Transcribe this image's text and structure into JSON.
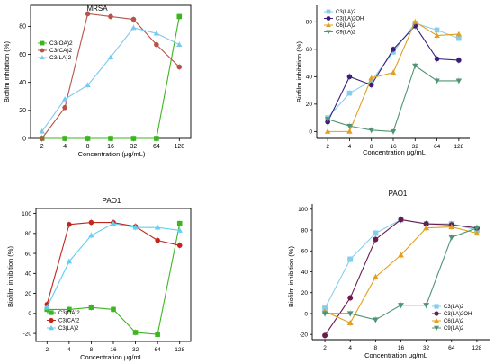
{
  "chart_data": [
    {
      "type": "line",
      "title": "MRSA",
      "xlabel": "Concentration (μg/mL)",
      "ylabel": "Biofilm inhibition (%)",
      "x": [
        "2",
        "4",
        "8",
        "16",
        "32",
        "64",
        "128"
      ],
      "yticks": [
        0,
        20,
        40,
        60,
        80
      ],
      "ylim": [
        0,
        95
      ],
      "legend": "top-left",
      "series": [
        {
          "name": "C3(OA)2",
          "color": "#3cb521",
          "marker": "square",
          "values": [
            0,
            0,
            0,
            0,
            0,
            0,
            87
          ]
        },
        {
          "name": "C3(CA)2",
          "color": "#b5544a",
          "marker": "circle",
          "values": [
            0,
            22,
            89,
            87,
            85,
            67,
            51
          ]
        },
        {
          "name": "C3(LA)2",
          "color": "#7ec8ee",
          "marker": "triangle-up",
          "values": [
            5,
            28,
            38,
            58,
            79,
            75,
            67
          ]
        }
      ]
    },
    {
      "type": "line",
      "title": "",
      "xlabel": "Concentration μg/mL",
      "ylabel": "Biofilm inhibition (%)",
      "x": [
        "2",
        "4",
        "8",
        "16",
        "32",
        "64",
        "128"
      ],
      "yticks": [
        0,
        20,
        40,
        60,
        80
      ],
      "ylim": [
        -5,
        92
      ],
      "legend": "top-left",
      "series": [
        {
          "name": "C3(LA)2",
          "color": "#87ceeb",
          "marker": "square",
          "values": [
            10,
            28,
            37,
            58,
            79,
            74,
            68
          ]
        },
        {
          "name": "C3(LA)2OH",
          "color": "#3b1e78",
          "marker": "circle",
          "values": [
            7,
            40,
            34,
            60,
            77,
            53,
            52
          ]
        },
        {
          "name": "C6(LA)2",
          "color": "#e0a020",
          "marker": "triangle-up",
          "values": [
            0,
            0,
            39,
            43,
            80,
            70,
            71
          ]
        },
        {
          "name": "C9(LA)2",
          "color": "#4f9473",
          "marker": "triangle-down",
          "values": [
            9,
            4,
            1,
            0,
            48,
            37,
            37
          ]
        }
      ]
    },
    {
      "type": "line",
      "title": "PAO1",
      "xlabel": "Concentration μg/mL",
      "ylabel": "Biofilm inhibition (%)",
      "x": [
        "2",
        "4",
        "8",
        "16",
        "32",
        "64",
        "128"
      ],
      "yticks": [
        -20,
        0,
        20,
        40,
        60,
        80,
        100
      ],
      "ylim": [
        -28,
        105
      ],
      "legend": "bottom-left",
      "series": [
        {
          "name": "C3(OA)2",
          "color": "#3cb521",
          "marker": "square",
          "values": [
            4,
            4,
            6,
            4,
            -19,
            -21,
            90
          ]
        },
        {
          "name": "C3(CA)2",
          "color": "#c0271d",
          "marker": "circle",
          "values": [
            9,
            89,
            91,
            91,
            87,
            73,
            68
          ]
        },
        {
          "name": "C3(LA)2",
          "color": "#5fd0f0",
          "marker": "triangle-up",
          "values": [
            6,
            52,
            78,
            90,
            86,
            86,
            83
          ]
        }
      ]
    },
    {
      "type": "line",
      "title": "PAO1",
      "xlabel": "Concentration μg/mL",
      "ylabel": "Biofilm inhibition (%)",
      "x": [
        "2",
        "4",
        "8",
        "16",
        "32",
        "64",
        "128"
      ],
      "yticks": [
        -20,
        0,
        20,
        40,
        60,
        80,
        100
      ],
      "ylim": [
        -25,
        105
      ],
      "legend": "bottom-right",
      "series": [
        {
          "name": "C3(LA)2",
          "color": "#87ceeb",
          "marker": "square",
          "values": [
            5,
            52,
            77,
            90,
            86,
            86,
            80
          ]
        },
        {
          "name": "C3(LA)2OH",
          "color": "#6a1b4d",
          "marker": "circle",
          "values": [
            -21,
            15,
            71,
            90,
            86,
            85,
            82
          ]
        },
        {
          "name": "C6(LA)2",
          "color": "#e0a020",
          "marker": "triangle-up",
          "values": [
            2,
            -9,
            35,
            56,
            82,
            83,
            77
          ]
        },
        {
          "name": "C9(LA)2",
          "color": "#4f9473",
          "marker": "triangle-down",
          "values": [
            0,
            0,
            -6,
            8,
            8,
            73,
            82
          ]
        }
      ]
    }
  ]
}
